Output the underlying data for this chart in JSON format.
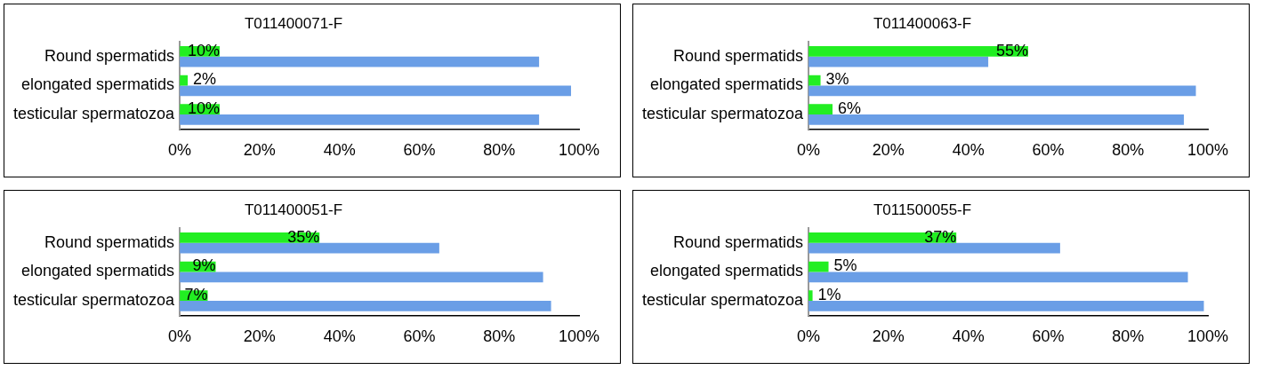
{
  "chart_data": [
    {
      "type": "bar",
      "orientation": "horizontal",
      "title": "T011400071-F",
      "categories": [
        "Round spermatids",
        "elongated spermatids",
        "testicular spermatozoa"
      ],
      "series": [
        {
          "color": "#22ee22",
          "values": [
            10,
            2,
            10
          ],
          "value_labels": [
            "10%",
            "2%",
            "10%"
          ]
        },
        {
          "color": "#6a9ee6",
          "values": [
            90,
            98,
            90
          ]
        }
      ],
      "xlim": [
        0,
        100
      ],
      "xticks": [
        {
          "value": 0,
          "label": "0%"
        },
        {
          "value": 20,
          "label": "20%"
        },
        {
          "value": 40,
          "label": "40%"
        },
        {
          "value": 60,
          "label": "60%"
        },
        {
          "value": 80,
          "label": "80%"
        },
        {
          "value": 100,
          "label": "100%"
        }
      ],
      "grid": false,
      "legend": false
    },
    {
      "type": "bar",
      "orientation": "horizontal",
      "title": "T011400063-F",
      "categories": [
        "Round spermatids",
        "elongated spermatids",
        "testicular spermatozoa"
      ],
      "series": [
        {
          "color": "#22ee22",
          "values": [
            55,
            3,
            6
          ],
          "value_labels": [
            "55%",
            "3%",
            "6%"
          ]
        },
        {
          "color": "#6a9ee6",
          "values": [
            45,
            97,
            94
          ]
        }
      ],
      "xlim": [
        0,
        100
      ],
      "xticks": [
        {
          "value": 0,
          "label": "0%"
        },
        {
          "value": 20,
          "label": "20%"
        },
        {
          "value": 40,
          "label": "40%"
        },
        {
          "value": 60,
          "label": "60%"
        },
        {
          "value": 80,
          "label": "80%"
        },
        {
          "value": 100,
          "label": "100%"
        }
      ],
      "grid": false,
      "legend": false
    },
    {
      "type": "bar",
      "orientation": "horizontal",
      "title": "T011400051-F",
      "categories": [
        "Round spermatids",
        "elongated spermatids",
        "testicular spermatozoa"
      ],
      "series": [
        {
          "color": "#22ee22",
          "values": [
            35,
            9,
            7
          ],
          "value_labels": [
            "35%",
            "9%",
            "7%"
          ]
        },
        {
          "color": "#6a9ee6",
          "values": [
            65,
            91,
            93
          ]
        }
      ],
      "xlim": [
        0,
        100
      ],
      "xticks": [
        {
          "value": 0,
          "label": "0%"
        },
        {
          "value": 20,
          "label": "20%"
        },
        {
          "value": 40,
          "label": "40%"
        },
        {
          "value": 60,
          "label": "60%"
        },
        {
          "value": 80,
          "label": "80%"
        },
        {
          "value": 100,
          "label": "100%"
        }
      ],
      "grid": false,
      "legend": false
    },
    {
      "type": "bar",
      "orientation": "horizontal",
      "title": "T011500055-F",
      "categories": [
        "Round spermatids",
        "elongated spermatids",
        "testicular spermatozoa"
      ],
      "series": [
        {
          "color": "#22ee22",
          "values": [
            37,
            5,
            1
          ],
          "value_labels": [
            "37%",
            "5%",
            "1%"
          ]
        },
        {
          "color": "#6a9ee6",
          "values": [
            63,
            95,
            99
          ]
        }
      ],
      "xlim": [
        0,
        100
      ],
      "xticks": [
        {
          "value": 0,
          "label": "0%"
        },
        {
          "value": 20,
          "label": "20%"
        },
        {
          "value": 40,
          "label": "40%"
        },
        {
          "value": 60,
          "label": "60%"
        },
        {
          "value": 80,
          "label": "80%"
        },
        {
          "value": 100,
          "label": "100%"
        }
      ],
      "grid": false,
      "legend": false
    }
  ]
}
